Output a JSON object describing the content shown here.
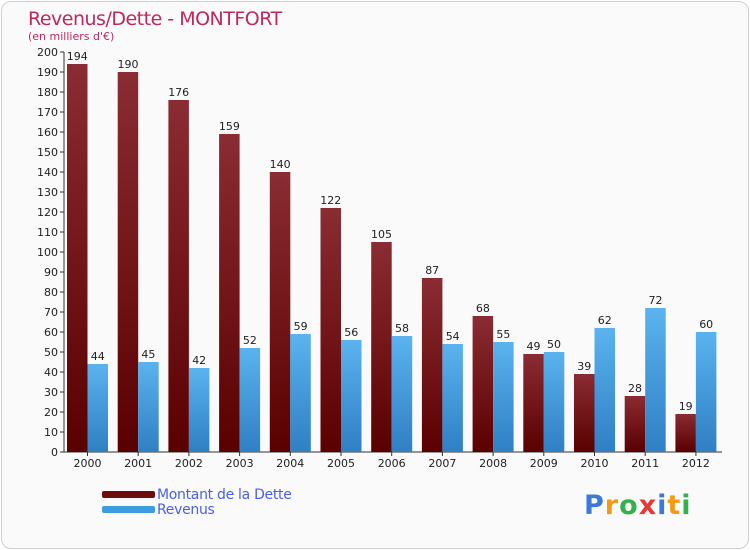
{
  "title": "Revenus/Dette - MONTFORT",
  "subtitle": "(en milliers d'€)",
  "brand": {
    "name": "Proxiti",
    "letters": [
      {
        "ch": "P",
        "color": "#3b78d8"
      },
      {
        "ch": "r",
        "color": "#f39c12"
      },
      {
        "ch": "o",
        "color": "#36b04a"
      },
      {
        "ch": "x",
        "color": "#e53935"
      },
      {
        "ch": "i",
        "color": "#3b78d8"
      },
      {
        "ch": "t",
        "color": "#f39c12"
      },
      {
        "ch": "i",
        "color": "#36b04a"
      }
    ]
  },
  "legend": [
    {
      "label": "Montant de la Dette",
      "color": "#7a1010"
    },
    {
      "label": "Revenus",
      "color": "#3d9be0"
    }
  ],
  "chart_data": {
    "type": "bar",
    "title": "Revenus/Dette - MONTFORT",
    "ylabel": "(en milliers d'€)",
    "xlabel": "",
    "categories": [
      "2000",
      "2001",
      "2002",
      "2003",
      "2004",
      "2005",
      "2006",
      "2007",
      "2008",
      "2009",
      "2010",
      "2011",
      "2012"
    ],
    "series": [
      {
        "name": "Montant de la Dette",
        "color": "#7a1010",
        "values": [
          194,
          190,
          176,
          159,
          140,
          122,
          105,
          87,
          68,
          49,
          39,
          28,
          19
        ]
      },
      {
        "name": "Revenus",
        "color": "#3d9be0",
        "values": [
          44,
          45,
          42,
          52,
          59,
          56,
          58,
          54,
          55,
          50,
          62,
          72,
          60
        ]
      }
    ],
    "ylim": [
      0,
      200
    ],
    "ytick_step": 10,
    "grid": false,
    "legend_position": "bottom-left"
  }
}
